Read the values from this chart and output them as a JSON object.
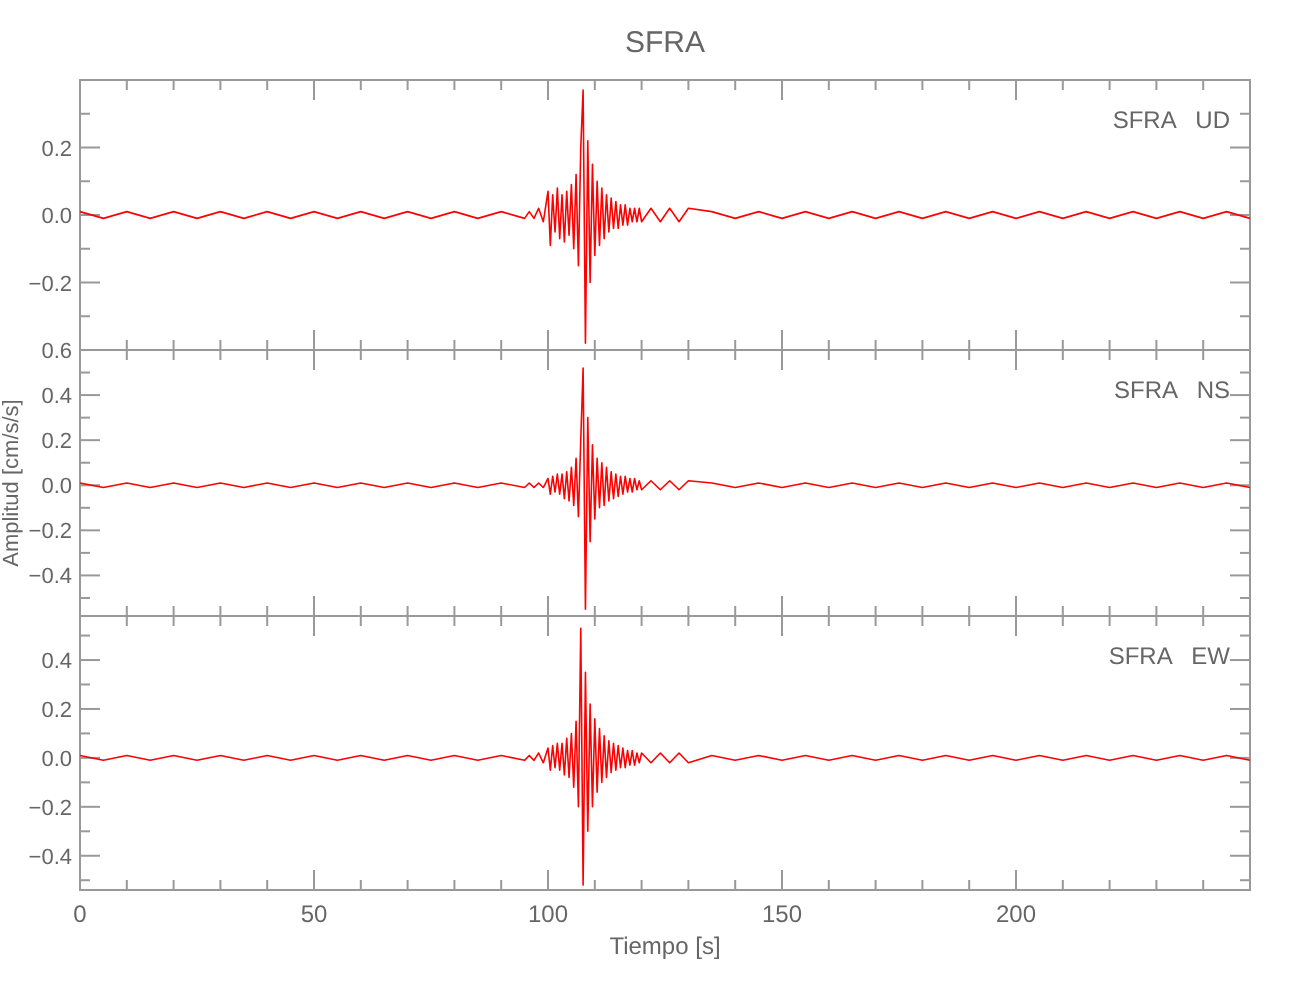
{
  "chart_data": [
    {
      "type": "line",
      "title": "SFRA",
      "annotations": [
        "SFRA   UD"
      ],
      "tick_labels": "y",
      "grid": false,
      "x": [
        0,
        5,
        10,
        15,
        20,
        25,
        30,
        35,
        40,
        45,
        50,
        55,
        60,
        65,
        70,
        75,
        80,
        85,
        90,
        95,
        96,
        97,
        98,
        99,
        100,
        100.5,
        101,
        101.5,
        102,
        102.5,
        103,
        103.5,
        104,
        104.5,
        105,
        105.5,
        106,
        106.5,
        107,
        107.5,
        108,
        108.5,
        109,
        109.5,
        110,
        110.5,
        111,
        111.5,
        112,
        112.5,
        113,
        113.5,
        114,
        114.5,
        115,
        115.5,
        116,
        116.5,
        117,
        117.5,
        118,
        118.5,
        119,
        119.5,
        120,
        122,
        124,
        126,
        128,
        130,
        135,
        140,
        145,
        150,
        155,
        160,
        165,
        170,
        175,
        180,
        185,
        190,
        195,
        200,
        205,
        210,
        215,
        220,
        225,
        230,
        235,
        240,
        245,
        250
      ],
      "xlim": [
        0,
        250
      ],
      "xticks": [
        0,
        {
          "value": 10,
          "label": null
        },
        {
          "value": 20,
          "label": null
        },
        {
          "value": 30,
          "label": null
        },
        {
          "value": 40,
          "label": null
        },
        50,
        {
          "value": 60,
          "label": null
        },
        {
          "value": 70,
          "label": null
        },
        {
          "value": 80,
          "label": null
        },
        {
          "value": 90,
          "label": null
        },
        100,
        {
          "value": 110,
          "label": null
        },
        {
          "value": 120,
          "label": null
        },
        {
          "value": 130,
          "label": null
        },
        {
          "value": 140,
          "label": null
        },
        150,
        {
          "value": 160,
          "label": null
        },
        {
          "value": 170,
          "label": null
        },
        {
          "value": 180,
          "label": null
        },
        {
          "value": 190,
          "label": null
        },
        200,
        {
          "value": 210,
          "label": null
        },
        {
          "value": 220,
          "label": null
        },
        {
          "value": 230,
          "label": null
        },
        {
          "value": 240,
          "label": null
        }
      ],
      "ylim": [
        -0.4,
        0.4
      ],
      "yticks": [
        {
          "value": -0.3,
          "label": null
        },
        -0.2,
        {
          "value": -0.1,
          "label": null
        },
        {
          "value": 0,
          "label": "0.0"
        },
        {
          "value": 0.1,
          "label": null
        },
        0.2,
        {
          "value": 0.3,
          "label": null
        }
      ],
      "series": [
        {
          "color": "#ff0000",
          "values": [
            0.01,
            -0.01,
            0.01,
            -0.01,
            0.01,
            -0.01,
            0.01,
            -0.01,
            0.01,
            -0.01,
            0.01,
            -0.01,
            0.01,
            -0.01,
            0.01,
            -0.01,
            0.01,
            -0.01,
            0.01,
            -0.01,
            0.01,
            -0.01,
            0.02,
            -0.02,
            0.07,
            -0.09,
            0.06,
            -0.05,
            0.08,
            -0.07,
            0.06,
            -0.08,
            0.07,
            -0.06,
            0.09,
            -0.1,
            0.12,
            -0.15,
            0.2,
            0.37,
            -0.38,
            0.22,
            -0.2,
            0.15,
            -0.12,
            0.1,
            -0.09,
            0.08,
            -0.07,
            0.06,
            -0.05,
            0.05,
            -0.04,
            0.04,
            -0.04,
            0.03,
            -0.03,
            0.03,
            -0.03,
            0.02,
            -0.02,
            0.02,
            -0.02,
            0.02,
            -0.02,
            0.02,
            -0.02,
            0.02,
            -0.02,
            0.02,
            0.01,
            -0.01,
            0.01,
            -0.01,
            0.01,
            -0.01,
            0.01,
            -0.01,
            0.01,
            -0.01,
            0.01,
            -0.01,
            0.01,
            -0.01,
            0.01,
            -0.01,
            0.01,
            -0.01,
            0.01,
            -0.01,
            0.01,
            -0.01,
            0.01,
            -0.01
          ]
        }
      ]
    },
    {
      "type": "line",
      "ylabel": "Amplitud [cm/s/s]",
      "annotations": [
        "SFRA   NS"
      ],
      "tick_labels": "y",
      "grid": false,
      "x": [
        0,
        5,
        10,
        15,
        20,
        25,
        30,
        35,
        40,
        45,
        50,
        55,
        60,
        65,
        70,
        75,
        80,
        85,
        90,
        95,
        96,
        97,
        98,
        99,
        100,
        100.5,
        101,
        101.5,
        102,
        102.5,
        103,
        103.5,
        104,
        104.5,
        105,
        105.5,
        106,
        106.5,
        107,
        107.5,
        108,
        108.5,
        109,
        109.5,
        110,
        110.5,
        111,
        111.5,
        112,
        112.5,
        113,
        113.5,
        114,
        114.5,
        115,
        115.5,
        116,
        116.5,
        117,
        117.5,
        118,
        118.5,
        119,
        119.5,
        120,
        122,
        124,
        126,
        128,
        130,
        135,
        140,
        145,
        150,
        155,
        160,
        165,
        170,
        175,
        180,
        185,
        190,
        195,
        200,
        205,
        210,
        215,
        220,
        225,
        230,
        235,
        240,
        245,
        250
      ],
      "xlim": [
        0,
        250
      ],
      "xticks": [
        0,
        {
          "value": 10,
          "label": null
        },
        {
          "value": 20,
          "label": null
        },
        {
          "value": 30,
          "label": null
        },
        {
          "value": 40,
          "label": null
        },
        50,
        {
          "value": 60,
          "label": null
        },
        {
          "value": 70,
          "label": null
        },
        {
          "value": 80,
          "label": null
        },
        {
          "value": 90,
          "label": null
        },
        100,
        {
          "value": 110,
          "label": null
        },
        {
          "value": 120,
          "label": null
        },
        {
          "value": 130,
          "label": null
        },
        {
          "value": 140,
          "label": null
        },
        150,
        {
          "value": 160,
          "label": null
        },
        {
          "value": 170,
          "label": null
        },
        {
          "value": 180,
          "label": null
        },
        {
          "value": 190,
          "label": null
        },
        200,
        {
          "value": 210,
          "label": null
        },
        {
          "value": 220,
          "label": null
        },
        {
          "value": 230,
          "label": null
        },
        {
          "value": 240,
          "label": null
        }
      ],
      "ylim": [
        -0.58,
        0.6
      ],
      "yticks": [
        {
          "value": -0.5,
          "label": null
        },
        -0.4,
        {
          "value": -0.3,
          "label": null
        },
        -0.2,
        {
          "value": -0.1,
          "label": null
        },
        {
          "value": 0,
          "label": "0.0"
        },
        {
          "value": 0.1,
          "label": null
        },
        0.2,
        {
          "value": 0.3,
          "label": null
        },
        0.4,
        {
          "value": 0.5,
          "label": null
        },
        0.6
      ],
      "series": [
        {
          "color": "#ff0000",
          "values": [
            0.01,
            -0.01,
            0.01,
            -0.01,
            0.01,
            -0.01,
            0.01,
            -0.01,
            0.01,
            -0.01,
            0.01,
            -0.01,
            0.01,
            -0.01,
            0.01,
            -0.01,
            0.01,
            -0.01,
            0.01,
            -0.01,
            0.01,
            -0.01,
            0.01,
            -0.01,
            0.03,
            -0.04,
            0.04,
            -0.03,
            0.05,
            -0.04,
            0.05,
            -0.06,
            0.06,
            -0.07,
            0.08,
            -0.09,
            0.12,
            -0.14,
            0.2,
            0.52,
            -0.55,
            0.3,
            -0.25,
            0.18,
            -0.15,
            0.12,
            -0.1,
            0.1,
            -0.09,
            0.08,
            -0.07,
            0.06,
            -0.06,
            0.05,
            -0.05,
            0.04,
            -0.04,
            0.04,
            -0.03,
            0.03,
            -0.03,
            0.03,
            -0.02,
            0.02,
            -0.02,
            0.02,
            -0.02,
            0.02,
            -0.02,
            0.02,
            0.01,
            -0.01,
            0.01,
            -0.01,
            0.01,
            -0.01,
            0.01,
            -0.01,
            0.01,
            -0.01,
            0.01,
            -0.01,
            0.01,
            -0.01,
            0.01,
            -0.01,
            0.01,
            -0.01,
            0.01,
            -0.01,
            0.01,
            -0.01,
            0.01,
            -0.01
          ]
        }
      ]
    },
    {
      "type": "line",
      "xlabel": "Tiempo [s]",
      "annotations": [
        "SFRA   EW"
      ],
      "grid": false,
      "x": [
        0,
        5,
        10,
        15,
        20,
        25,
        30,
        35,
        40,
        45,
        50,
        55,
        60,
        65,
        70,
        75,
        80,
        85,
        90,
        95,
        96,
        97,
        98,
        99,
        100,
        100.5,
        101,
        101.5,
        102,
        102.5,
        103,
        103.5,
        104,
        104.5,
        105,
        105.5,
        106,
        106.5,
        107,
        107.5,
        108,
        108.5,
        109,
        109.5,
        110,
        110.5,
        111,
        111.5,
        112,
        112.5,
        113,
        113.5,
        114,
        114.5,
        115,
        115.5,
        116,
        116.5,
        117,
        117.5,
        118,
        118.5,
        119,
        119.5,
        120,
        122,
        124,
        126,
        128,
        130,
        135,
        140,
        145,
        150,
        155,
        160,
        165,
        170,
        175,
        180,
        185,
        190,
        195,
        200,
        205,
        210,
        215,
        220,
        225,
        230,
        235,
        240,
        245,
        250
      ],
      "xlim": [
        0,
        250
      ],
      "xticks": [
        0,
        {
          "value": 10,
          "label": null
        },
        {
          "value": 20,
          "label": null
        },
        {
          "value": 30,
          "label": null
        },
        {
          "value": 40,
          "label": null
        },
        50,
        {
          "value": 60,
          "label": null
        },
        {
          "value": 70,
          "label": null
        },
        {
          "value": 80,
          "label": null
        },
        {
          "value": 90,
          "label": null
        },
        100,
        {
          "value": 110,
          "label": null
        },
        {
          "value": 120,
          "label": null
        },
        {
          "value": 130,
          "label": null
        },
        {
          "value": 140,
          "label": null
        },
        150,
        {
          "value": 160,
          "label": null
        },
        {
          "value": 170,
          "label": null
        },
        {
          "value": 180,
          "label": null
        },
        {
          "value": 190,
          "label": null
        },
        200,
        {
          "value": 210,
          "label": null
        },
        {
          "value": 220,
          "label": null
        },
        {
          "value": 230,
          "label": null
        },
        {
          "value": 240,
          "label": null
        }
      ],
      "ylim": [
        -0.54,
        0.58
      ],
      "yticks": [
        {
          "value": -0.5,
          "label": null
        },
        -0.4,
        {
          "value": -0.3,
          "label": null
        },
        -0.2,
        {
          "value": -0.1,
          "label": null
        },
        {
          "value": 0,
          "label": "0.0"
        },
        {
          "value": 0.1,
          "label": null
        },
        0.2,
        {
          "value": 0.3,
          "label": null
        },
        0.4,
        {
          "value": 0.5,
          "label": null
        }
      ],
      "series": [
        {
          "color": "#ff0000",
          "values": [
            0.01,
            -0.01,
            0.01,
            -0.01,
            0.01,
            -0.01,
            0.01,
            -0.01,
            0.01,
            -0.01,
            0.01,
            -0.01,
            0.01,
            -0.01,
            0.01,
            -0.01,
            0.01,
            -0.01,
            0.01,
            -0.01,
            0.01,
            -0.01,
            0.02,
            -0.02,
            0.04,
            -0.05,
            0.05,
            -0.04,
            0.06,
            -0.05,
            0.06,
            -0.07,
            0.08,
            -0.08,
            0.1,
            -0.12,
            0.15,
            -0.2,
            0.53,
            -0.52,
            0.35,
            -0.3,
            0.22,
            -0.2,
            0.16,
            -0.14,
            0.12,
            -0.1,
            0.09,
            -0.08,
            0.07,
            -0.06,
            0.06,
            -0.05,
            0.05,
            -0.04,
            0.04,
            -0.04,
            0.03,
            -0.03,
            0.03,
            -0.03,
            0.02,
            -0.02,
            0.02,
            -0.02,
            0.02,
            -0.02,
            0.02,
            -0.02,
            0.01,
            -0.01,
            0.01,
            -0.01,
            0.01,
            -0.01,
            0.01,
            -0.01,
            0.01,
            -0.01,
            0.01,
            -0.01,
            0.01,
            -0.01,
            0.01,
            -0.01,
            0.01,
            -0.01,
            0.01,
            -0.01,
            0.01,
            -0.01,
            0.01,
            -0.01
          ]
        }
      ]
    }
  ]
}
